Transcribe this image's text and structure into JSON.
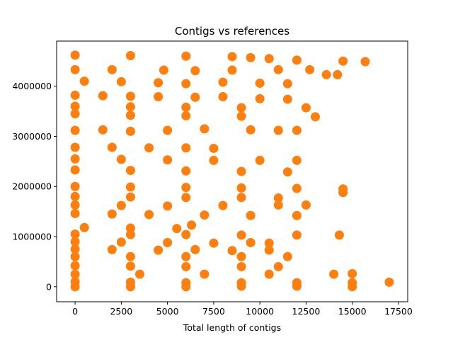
{
  "chart_data": {
    "type": "scatter",
    "title": "Contigs vs references",
    "xlabel": "Total length of contigs",
    "ylabel": "",
    "xlim": [
      -1000,
      18000
    ],
    "ylim": [
      -300000,
      4900000
    ],
    "x_ticks": [
      0,
      2500,
      5000,
      7500,
      10000,
      12500,
      15000,
      17500
    ],
    "y_ticks": [
      0,
      1000000,
      2000000,
      3000000,
      4000000
    ],
    "x_tick_labels": [
      "0",
      "2500",
      "5000",
      "7500",
      "10000",
      "12500",
      "15000",
      "17500"
    ],
    "y_tick_labels": [
      "0",
      "1000000",
      "2000000",
      "3000000",
      "4000000"
    ],
    "grid": false,
    "series": [
      {
        "color": "#ff7f0e",
        "marker": "circle",
        "points": [
          [
            0,
            4620000
          ],
          [
            3000,
            4610000
          ],
          [
            6000,
            4600000
          ],
          [
            8500,
            4590000
          ],
          [
            9500,
            4570000
          ],
          [
            10500,
            4550000
          ],
          [
            12000,
            4520000
          ],
          [
            14500,
            4500000
          ],
          [
            15700,
            4490000
          ],
          [
            0,
            4330000
          ],
          [
            2000,
            4330000
          ],
          [
            4800,
            4320000
          ],
          [
            6500,
            4310000
          ],
          [
            8500,
            4320000
          ],
          [
            11000,
            4330000
          ],
          [
            12700,
            4330000
          ],
          [
            13600,
            4230000
          ],
          [
            14200,
            4230000
          ],
          [
            500,
            4100000
          ],
          [
            2500,
            4090000
          ],
          [
            4500,
            4070000
          ],
          [
            6000,
            4050000
          ],
          [
            8000,
            4080000
          ],
          [
            10000,
            4060000
          ],
          [
            11500,
            4050000
          ],
          [
            0,
            3820000
          ],
          [
            1500,
            3810000
          ],
          [
            3000,
            3800000
          ],
          [
            4500,
            3790000
          ],
          [
            6500,
            3780000
          ],
          [
            8000,
            3790000
          ],
          [
            10000,
            3750000
          ],
          [
            11500,
            3740000
          ],
          [
            0,
            3600000
          ],
          [
            3000,
            3590000
          ],
          [
            6000,
            3580000
          ],
          [
            9000,
            3570000
          ],
          [
            12500,
            3570000
          ],
          [
            0,
            3450000
          ],
          [
            3000,
            3420000
          ],
          [
            6000,
            3410000
          ],
          [
            9000,
            3400000
          ],
          [
            13000,
            3390000
          ],
          [
            0,
            3120000
          ],
          [
            1500,
            3130000
          ],
          [
            3000,
            3100000
          ],
          [
            5000,
            3120000
          ],
          [
            7000,
            3150000
          ],
          [
            9500,
            3130000
          ],
          [
            11000,
            3120000
          ],
          [
            12000,
            3120000
          ],
          [
            0,
            2780000
          ],
          [
            2000,
            2780000
          ],
          [
            4000,
            2770000
          ],
          [
            6000,
            2770000
          ],
          [
            7500,
            2760000
          ],
          [
            0,
            2550000
          ],
          [
            2500,
            2540000
          ],
          [
            5000,
            2530000
          ],
          [
            7500,
            2520000
          ],
          [
            10000,
            2520000
          ],
          [
            12000,
            2520000
          ],
          [
            0,
            2330000
          ],
          [
            3000,
            2320000
          ],
          [
            6000,
            2310000
          ],
          [
            9000,
            2300000
          ],
          [
            11500,
            2290000
          ],
          [
            0,
            2000000
          ],
          [
            3000,
            1990000
          ],
          [
            6000,
            1980000
          ],
          [
            9000,
            1970000
          ],
          [
            12000,
            1960000
          ],
          [
            14500,
            1950000
          ],
          [
            14500,
            1880000
          ],
          [
            0,
            1800000
          ],
          [
            3000,
            1790000
          ],
          [
            6000,
            1780000
          ],
          [
            9000,
            1780000
          ],
          [
            11000,
            1770000
          ],
          [
            0,
            1630000
          ],
          [
            2500,
            1620000
          ],
          [
            5000,
            1610000
          ],
          [
            8000,
            1620000
          ],
          [
            11000,
            1630000
          ],
          [
            12500,
            1630000
          ],
          [
            0,
            1460000
          ],
          [
            2000,
            1450000
          ],
          [
            4000,
            1440000
          ],
          [
            7000,
            1430000
          ],
          [
            9500,
            1420000
          ],
          [
            12000,
            1420000
          ],
          [
            0,
            1050000
          ],
          [
            3000,
            1040000
          ],
          [
            6000,
            1040000
          ],
          [
            9000,
            1030000
          ],
          [
            12000,
            1030000
          ],
          [
            14300,
            1030000
          ],
          [
            500,
            1180000
          ],
          [
            3000,
            1170000
          ],
          [
            5500,
            1160000
          ],
          [
            6300,
            1230000
          ],
          [
            0,
            900000
          ],
          [
            2500,
            890000
          ],
          [
            5000,
            880000
          ],
          [
            7500,
            870000
          ],
          [
            9500,
            880000
          ],
          [
            10500,
            870000
          ],
          [
            0,
            750000
          ],
          [
            2000,
            740000
          ],
          [
            4500,
            730000
          ],
          [
            6500,
            740000
          ],
          [
            8500,
            720000
          ],
          [
            10500,
            730000
          ],
          [
            0,
            600000
          ],
          [
            3000,
            600000
          ],
          [
            6000,
            600000
          ],
          [
            9000,
            600000
          ],
          [
            11500,
            600000
          ],
          [
            0,
            420000
          ],
          [
            3000,
            410000
          ],
          [
            6000,
            400000
          ],
          [
            9000,
            400000
          ],
          [
            11000,
            400000
          ],
          [
            0,
            250000
          ],
          [
            3500,
            250000
          ],
          [
            7000,
            250000
          ],
          [
            10500,
            250000
          ],
          [
            14000,
            250000
          ],
          [
            15000,
            260000
          ],
          [
            0,
            100000
          ],
          [
            3000,
            90000
          ],
          [
            6000,
            80000
          ],
          [
            9000,
            80000
          ],
          [
            12000,
            80000
          ],
          [
            15000,
            80000
          ],
          [
            17000,
            90000
          ],
          [
            0,
            0
          ],
          [
            3000,
            0
          ],
          [
            6000,
            0
          ],
          [
            9000,
            10000
          ],
          [
            12000,
            10000
          ],
          [
            15000,
            0
          ]
        ]
      }
    ]
  }
}
